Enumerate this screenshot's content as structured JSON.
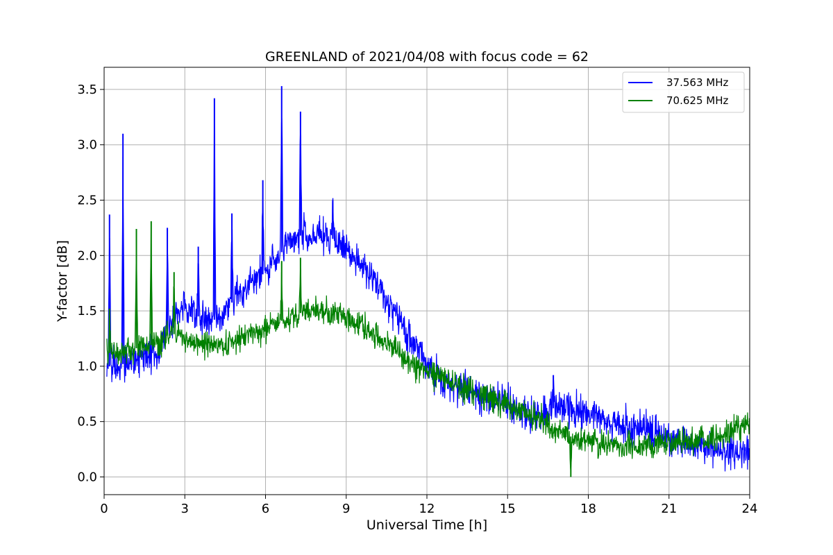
{
  "chart_data": {
    "type": "line",
    "title": "GREENLAND of 2021/04/08 with focus code = 62",
    "xlabel": "Universal Time [h]",
    "ylabel": "Y-factor [dB]",
    "xlim": [
      0,
      24
    ],
    "ylim": [
      -0.16,
      3.7
    ],
    "xticks": [
      "0",
      "3",
      "6",
      "9",
      "12",
      "15",
      "18",
      "21",
      "24"
    ],
    "yticks": [
      "0.0",
      "0.5",
      "1.0",
      "1.5",
      "2.0",
      "2.5",
      "3.0",
      "3.5"
    ],
    "grid": true,
    "legend_position": "top-right",
    "series": [
      {
        "name": "37.563 MHz",
        "color": "#0000ff",
        "noise_amplitude": 0.12,
        "x": [
          0.1,
          0.5,
          1.0,
          1.5,
          2.0,
          2.5,
          3.0,
          3.5,
          4.0,
          4.5,
          5.0,
          5.5,
          6.0,
          6.5,
          7.0,
          7.5,
          8.0,
          8.5,
          9.0,
          9.5,
          10.0,
          10.5,
          11.0,
          11.5,
          12.0,
          12.5,
          13.0,
          13.5,
          14.0,
          14.5,
          15.0,
          15.5,
          16.0,
          16.5,
          17.0,
          17.5,
          18.0,
          18.5,
          19.0,
          19.5,
          20.0,
          20.5,
          21.0,
          21.5,
          22.0,
          22.5,
          23.0,
          23.5,
          24.0
        ],
        "y": [
          1.0,
          1.0,
          1.05,
          1.08,
          1.1,
          1.4,
          1.55,
          1.45,
          1.4,
          1.5,
          1.65,
          1.75,
          1.85,
          2.0,
          2.15,
          2.2,
          2.2,
          2.15,
          2.05,
          1.92,
          1.78,
          1.6,
          1.42,
          1.2,
          1.02,
          0.88,
          0.82,
          0.78,
          0.73,
          0.7,
          0.65,
          0.6,
          0.55,
          0.6,
          0.65,
          0.6,
          0.58,
          0.52,
          0.48,
          0.46,
          0.44,
          0.4,
          0.36,
          0.32,
          0.28,
          0.25,
          0.23,
          0.22,
          0.22
        ],
        "spikes": [
          [
            0.2,
            2.37
          ],
          [
            0.7,
            3.1
          ],
          [
            2.35,
            2.25
          ],
          [
            3.5,
            2.08
          ],
          [
            4.1,
            3.42
          ],
          [
            4.75,
            2.38
          ],
          [
            5.9,
            2.68
          ],
          [
            6.6,
            3.53
          ],
          [
            7.3,
            3.3
          ],
          [
            8.5,
            2.5
          ],
          [
            16.7,
            0.92
          ]
        ]
      },
      {
        "name": "70.625 MHz",
        "color": "#008000",
        "noise_amplitude": 0.09,
        "x": [
          0.1,
          0.5,
          1.0,
          1.5,
          2.0,
          2.5,
          3.0,
          3.5,
          4.0,
          4.5,
          5.0,
          5.5,
          6.0,
          6.5,
          7.0,
          7.5,
          8.0,
          8.5,
          9.0,
          9.5,
          10.0,
          10.5,
          11.0,
          11.5,
          12.0,
          12.5,
          13.0,
          13.5,
          14.0,
          14.5,
          15.0,
          15.5,
          16.0,
          16.5,
          17.0,
          17.5,
          18.0,
          18.5,
          19.0,
          19.5,
          20.0,
          20.5,
          21.0,
          21.5,
          22.0,
          22.5,
          23.0,
          23.5,
          24.0
        ],
        "y": [
          1.12,
          1.12,
          1.15,
          1.18,
          1.2,
          1.3,
          1.25,
          1.2,
          1.18,
          1.2,
          1.25,
          1.3,
          1.35,
          1.4,
          1.45,
          1.5,
          1.5,
          1.48,
          1.43,
          1.38,
          1.3,
          1.22,
          1.12,
          1.0,
          0.95,
          0.9,
          0.85,
          0.8,
          0.75,
          0.7,
          0.65,
          0.6,
          0.55,
          0.48,
          0.4,
          0.35,
          0.32,
          0.3,
          0.28,
          0.27,
          0.28,
          0.29,
          0.3,
          0.31,
          0.33,
          0.35,
          0.38,
          0.42,
          0.48
        ],
        "spikes": [
          [
            0.2,
            1.52
          ],
          [
            1.2,
            2.24
          ],
          [
            1.75,
            2.31
          ],
          [
            2.6,
            1.85
          ],
          [
            6.6,
            1.95
          ],
          [
            7.3,
            1.98
          ],
          [
            17.35,
            0.0
          ]
        ]
      }
    ]
  }
}
